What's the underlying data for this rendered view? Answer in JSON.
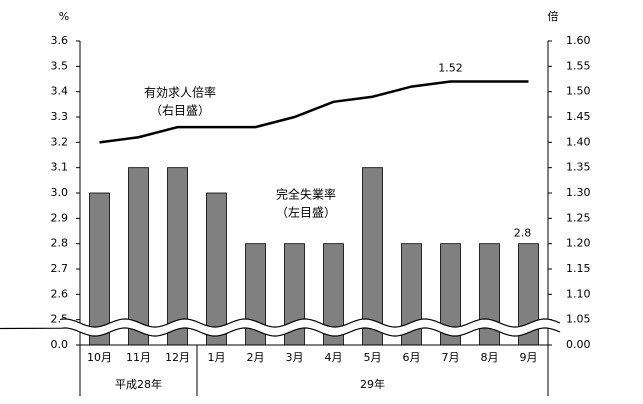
{
  "chart_data": {
    "type": "bar_line",
    "y_unit": "%",
    "y2_unit": "倍",
    "categories": [
      "10月",
      "11月",
      "12月",
      "1月",
      "2月",
      "3月",
      "4月",
      "5月",
      "6月",
      "7月",
      "8月",
      "9月"
    ],
    "groups": [
      {
        "label": "平成28年",
        "span": 3
      },
      {
        "label": "29年",
        "span": 9
      }
    ],
    "series": [
      {
        "name": "完全失業率",
        "type": "bar",
        "color": "#808080",
        "axis": "y",
        "values": [
          3.0,
          3.1,
          3.1,
          3.0,
          2.8,
          2.8,
          2.8,
          3.1,
          2.8,
          2.8,
          2.8,
          2.8
        ],
        "value_labels": [
          null,
          null,
          null,
          null,
          null,
          null,
          null,
          null,
          null,
          null,
          null,
          "2.8"
        ]
      },
      {
        "name": "有効求人倍率",
        "type": "line",
        "color": "#000000",
        "axis": "y2",
        "values": [
          1.4,
          1.41,
          1.43,
          1.43,
          1.43,
          1.45,
          1.48,
          1.49,
          1.51,
          1.52,
          1.52,
          1.52
        ],
        "value_labels": [
          null,
          null,
          null,
          null,
          null,
          null,
          null,
          null,
          null,
          "1.52",
          null,
          null
        ]
      }
    ],
    "annotations": [
      "有効求人倍率",
      "（右目盛）",
      "完全失業率",
      "（左目盛）"
    ],
    "axis_break": true,
    "ylim": [
      2.4,
      3.6
    ],
    "yticks": [
      {
        "value": 0,
        "label": "0.0"
      },
      2.5,
      2.6,
      2.7,
      2.8,
      2.9,
      {
        "value": 3,
        "label": "3.0"
      },
      3.1,
      3.2,
      3.3,
      3.4,
      3.5,
      3.6
    ],
    "y2lim": [
      1.0,
      1.6
    ],
    "y2ticks": [
      {
        "value": 0,
        "label": "0.00"
      },
      1.05,
      {
        "value": 1.1,
        "label": "1.10"
      },
      1.15,
      {
        "value": 1.2,
        "label": "1.20"
      },
      1.25,
      {
        "value": 1.3,
        "label": "1.30"
      },
      1.35,
      {
        "value": 1.4,
        "label": "1.40"
      },
      1.45,
      {
        "value": 1.5,
        "label": "1.50"
      },
      1.55,
      {
        "value": 1.6,
        "label": "1.60"
      }
    ]
  }
}
